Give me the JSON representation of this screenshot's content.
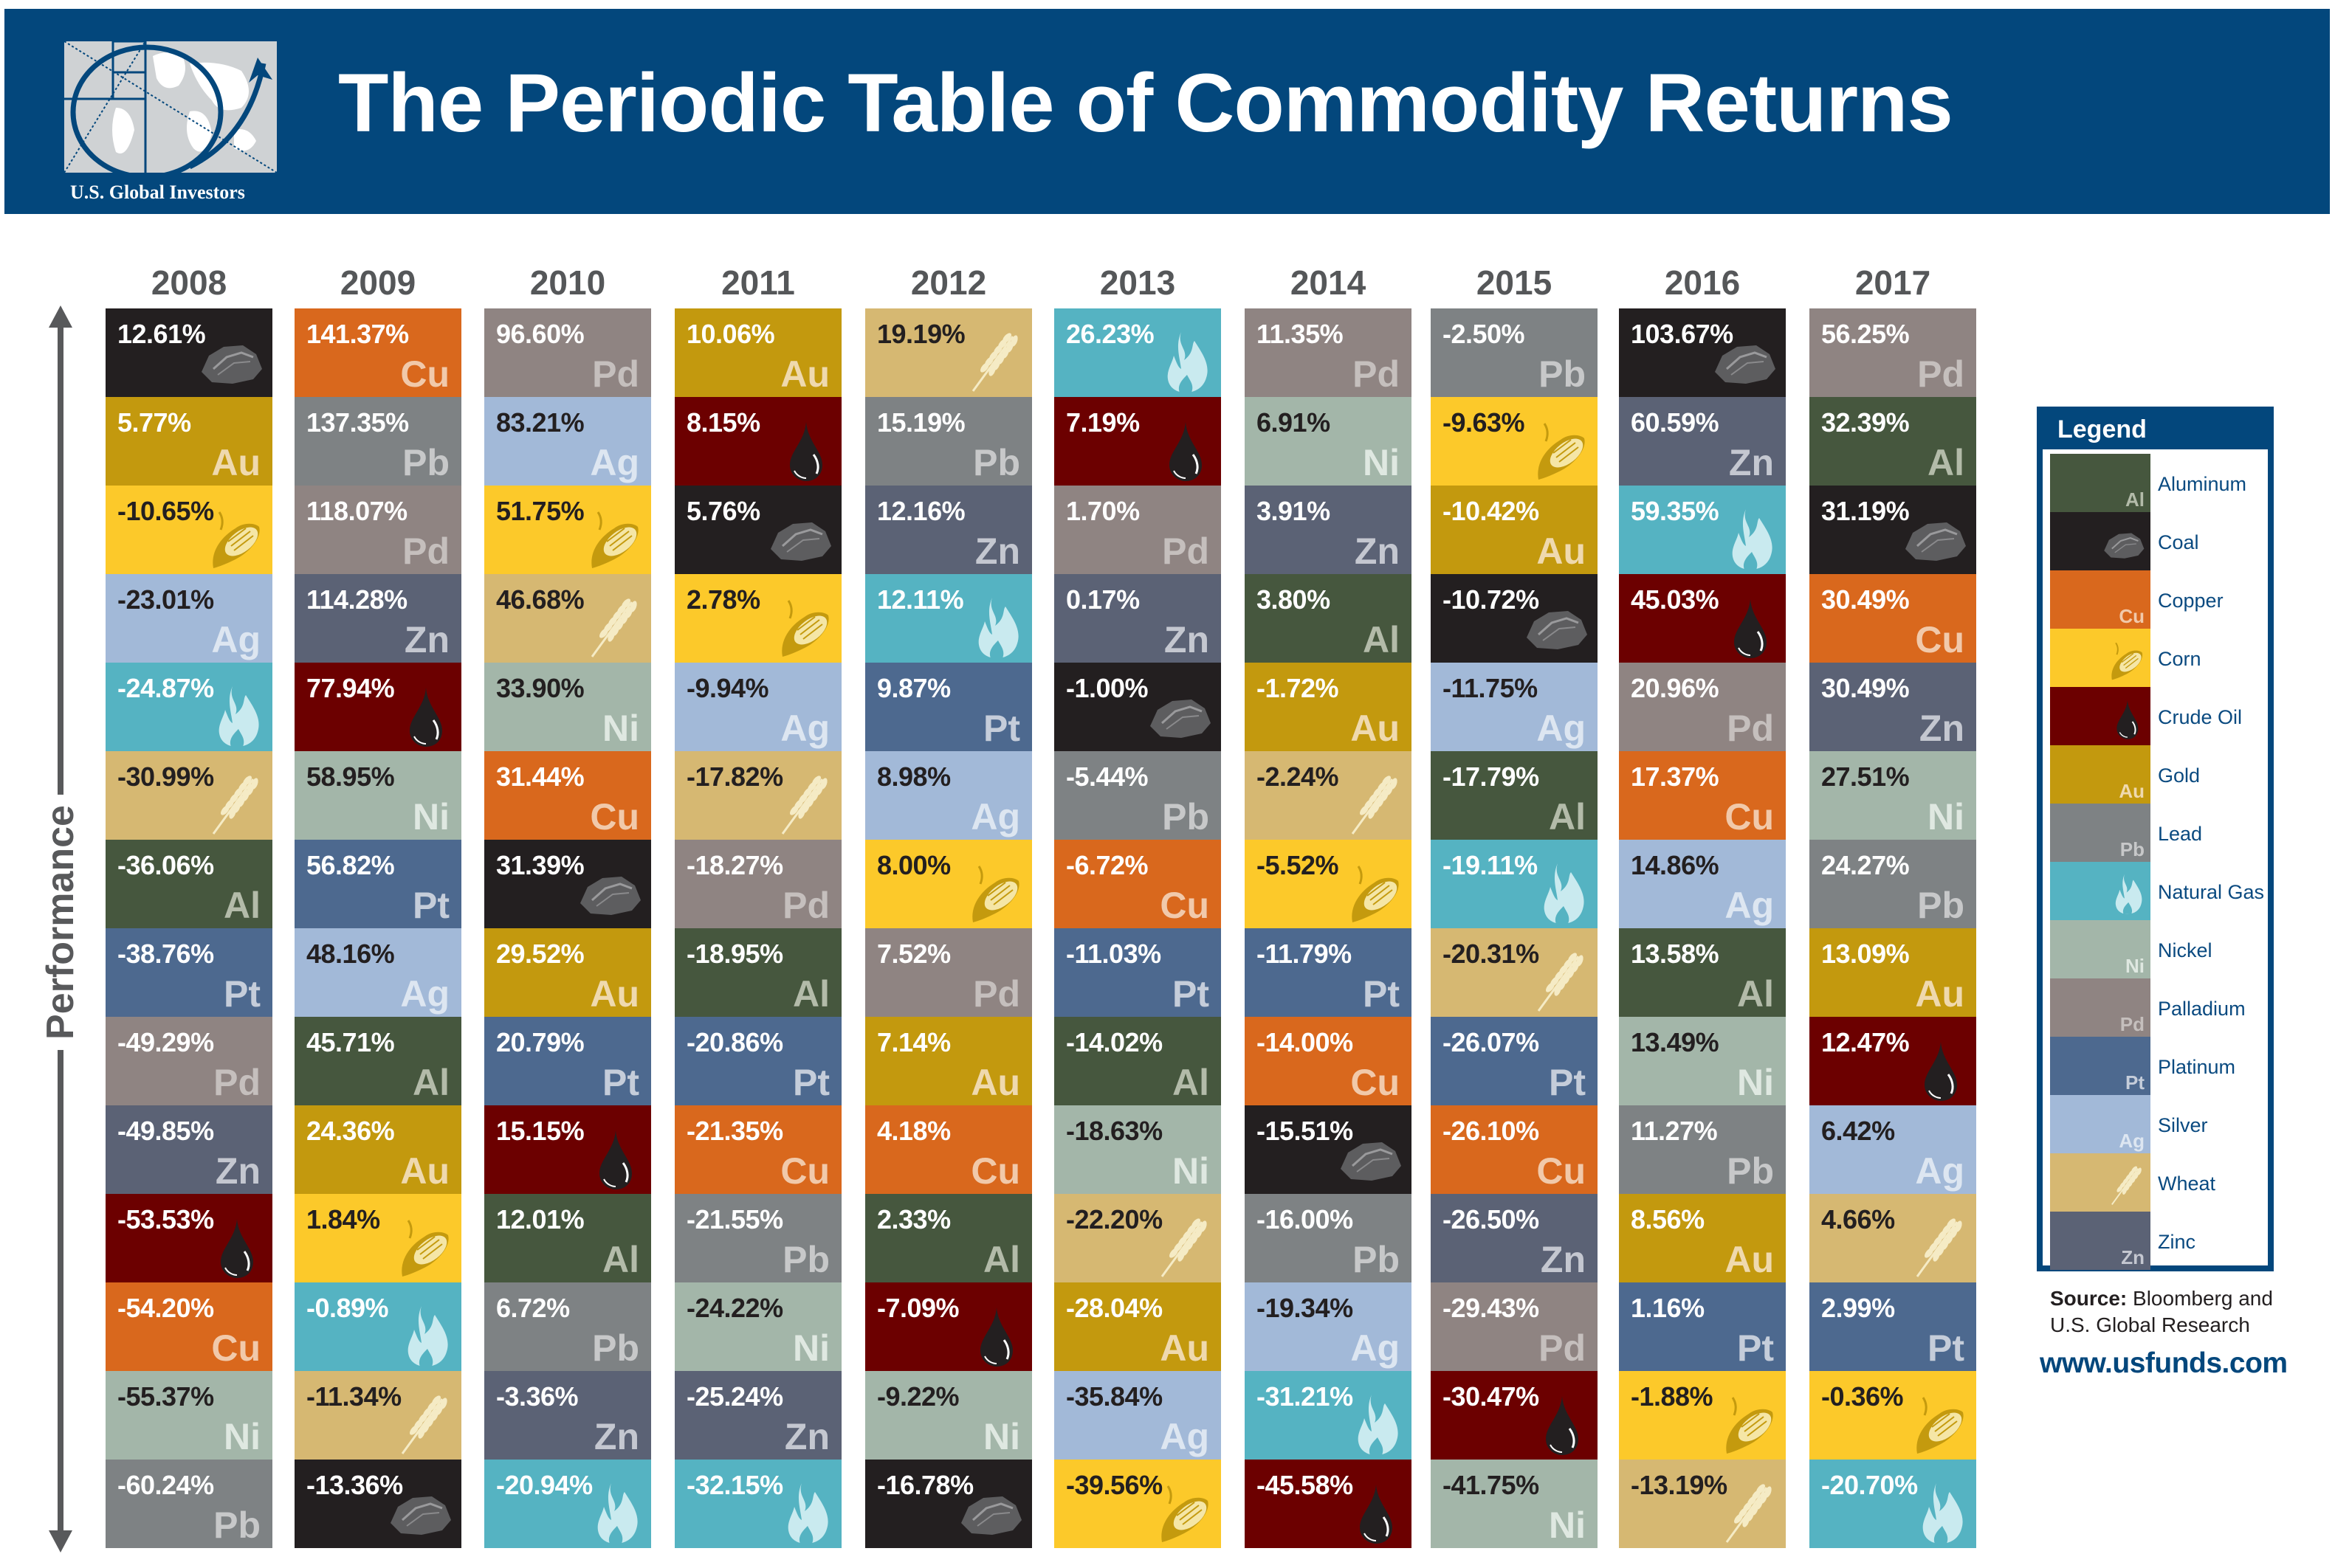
{
  "header": {
    "title": "The Periodic Table of Commodity Returns",
    "logo_caption": "U.S. Global Investors"
  },
  "axis_label": "Performance",
  "legend": {
    "title": "Legend",
    "items": [
      {
        "key": "al",
        "name": "Aluminum",
        "symbol": "Al",
        "icon": ""
      },
      {
        "key": "coal",
        "name": "Coal",
        "symbol": "",
        "icon": "coal-icon"
      },
      {
        "key": "cu",
        "name": "Copper",
        "symbol": "Cu",
        "icon": ""
      },
      {
        "key": "corn",
        "name": "Corn",
        "symbol": "",
        "icon": "corn-icon"
      },
      {
        "key": "oil",
        "name": "Crude Oil",
        "symbol": "",
        "icon": "oil-drop-icon"
      },
      {
        "key": "au",
        "name": "Gold",
        "symbol": "Au",
        "icon": ""
      },
      {
        "key": "pb",
        "name": "Lead",
        "symbol": "Pb",
        "icon": ""
      },
      {
        "key": "gas",
        "name": "Natural Gas",
        "symbol": "",
        "icon": "flame-icon"
      },
      {
        "key": "ni",
        "name": "Nickel",
        "symbol": "Ni",
        "icon": ""
      },
      {
        "key": "pd",
        "name": "Palladium",
        "symbol": "Pd",
        "icon": ""
      },
      {
        "key": "pt",
        "name": "Platinum",
        "symbol": "Pt",
        "icon": ""
      },
      {
        "key": "ag",
        "name": "Silver",
        "symbol": "Ag",
        "icon": ""
      },
      {
        "key": "wheat",
        "name": "Wheat",
        "symbol": "",
        "icon": "wheat-icon"
      },
      {
        "key": "zn",
        "name": "Zinc",
        "symbol": "Zn",
        "icon": ""
      }
    ]
  },
  "commodity_styles": {
    "al": {
      "bg": "#46573e",
      "text": "#ffffff",
      "sym": "#b3bba9"
    },
    "coal": {
      "bg": "#231f20",
      "text": "#ffffff",
      "sym": "#8a8a8a"
    },
    "cu": {
      "bg": "#d9681d",
      "text": "#ffffff",
      "sym": "#f1c9aa"
    },
    "corn": {
      "bg": "#fcc92a",
      "text": "#231f20",
      "sym": "#c49a0e"
    },
    "oil": {
      "bg": "#6c0000",
      "text": "#ffffff",
      "sym": "#231f20"
    },
    "au": {
      "bg": "#c3990e",
      "text": "#ffffff",
      "sym": "#efd9ae"
    },
    "pb": {
      "bg": "#7e8284",
      "text": "#ffffff",
      "sym": "#c7c8c9"
    },
    "gas": {
      "bg": "#55b3c2",
      "text": "#ffffff",
      "sym": "#c9eaef"
    },
    "ni": {
      "bg": "#a3b6a9",
      "text": "#231f20",
      "sym": "#dfe8e1"
    },
    "pd": {
      "bg": "#8f8482",
      "text": "#ffffff",
      "sym": "#c5bfbd"
    },
    "pt": {
      "bg": "#4d698f",
      "text": "#ffffff",
      "sym": "#c5cdda"
    },
    "ag": {
      "bg": "#a2b9d8",
      "text": "#231f20",
      "sym": "#dde6f1"
    },
    "wheat": {
      "bg": "#d6b872",
      "text": "#231f20",
      "sym": "#f5ebc5"
    },
    "zn": {
      "bg": "#5b6275",
      "text": "#ffffff",
      "sym": "#c4c7d0"
    }
  },
  "source": {
    "label": "Source:",
    "text_line1": "Bloomberg and",
    "text_line2": "U.S. Global Research"
  },
  "url": "www.usfunds.com",
  "chart_data": {
    "type": "table",
    "title": "The Periodic Table of Commodity Returns",
    "ylabel": "Performance",
    "years": [
      "2008",
      "2009",
      "2010",
      "2011",
      "2012",
      "2013",
      "2014",
      "2015",
      "2016",
      "2017"
    ],
    "columns": [
      {
        "year": "2008",
        "cells": [
          {
            "c": "coal",
            "v": "12.61%"
          },
          {
            "c": "au",
            "v": "5.77%"
          },
          {
            "c": "corn",
            "v": "-10.65%"
          },
          {
            "c": "ag",
            "v": "-23.01%"
          },
          {
            "c": "gas",
            "v": "-24.87%"
          },
          {
            "c": "wheat",
            "v": "-30.99%"
          },
          {
            "c": "al",
            "v": "-36.06%"
          },
          {
            "c": "pt",
            "v": "-38.76%"
          },
          {
            "c": "pd",
            "v": "-49.29%"
          },
          {
            "c": "zn",
            "v": "-49.85%"
          },
          {
            "c": "oil",
            "v": "-53.53%"
          },
          {
            "c": "cu",
            "v": "-54.20%"
          },
          {
            "c": "ni",
            "v": "-55.37%"
          },
          {
            "c": "pb",
            "v": "-60.24%"
          }
        ]
      },
      {
        "year": "2009",
        "cells": [
          {
            "c": "cu",
            "v": "141.37%"
          },
          {
            "c": "pb",
            "v": "137.35%"
          },
          {
            "c": "pd",
            "v": "118.07%"
          },
          {
            "c": "zn",
            "v": "114.28%"
          },
          {
            "c": "oil",
            "v": "77.94%"
          },
          {
            "c": "ni",
            "v": "58.95%"
          },
          {
            "c": "pt",
            "v": "56.82%"
          },
          {
            "c": "ag",
            "v": "48.16%"
          },
          {
            "c": "al",
            "v": "45.71%"
          },
          {
            "c": "au",
            "v": "24.36%"
          },
          {
            "c": "corn",
            "v": "1.84%"
          },
          {
            "c": "gas",
            "v": "-0.89%"
          },
          {
            "c": "wheat",
            "v": "-11.34%"
          },
          {
            "c": "coal",
            "v": "-13.36%"
          }
        ]
      },
      {
        "year": "2010",
        "cells": [
          {
            "c": "pd",
            "v": "96.60%"
          },
          {
            "c": "ag",
            "v": "83.21%"
          },
          {
            "c": "corn",
            "v": "51.75%"
          },
          {
            "c": "wheat",
            "v": "46.68%"
          },
          {
            "c": "ni",
            "v": "33.90%"
          },
          {
            "c": "cu",
            "v": "31.44%"
          },
          {
            "c": "coal",
            "v": "31.39%"
          },
          {
            "c": "au",
            "v": "29.52%"
          },
          {
            "c": "pt",
            "v": "20.79%"
          },
          {
            "c": "oil",
            "v": "15.15%"
          },
          {
            "c": "al",
            "v": "12.01%"
          },
          {
            "c": "pb",
            "v": "6.72%"
          },
          {
            "c": "zn",
            "v": "-3.36%"
          },
          {
            "c": "gas",
            "v": "-20.94%"
          }
        ]
      },
      {
        "year": "2011",
        "cells": [
          {
            "c": "au",
            "v": "10.06%"
          },
          {
            "c": "oil",
            "v": "8.15%"
          },
          {
            "c": "coal",
            "v": "5.76%"
          },
          {
            "c": "corn",
            "v": "2.78%"
          },
          {
            "c": "ag",
            "v": "-9.94%"
          },
          {
            "c": "wheat",
            "v": "-17.82%"
          },
          {
            "c": "pd",
            "v": "-18.27%"
          },
          {
            "c": "al",
            "v": "-18.95%"
          },
          {
            "c": "pt",
            "v": "-20.86%"
          },
          {
            "c": "cu",
            "v": "-21.35%"
          },
          {
            "c": "pb",
            "v": "-21.55%"
          },
          {
            "c": "ni",
            "v": "-24.22%"
          },
          {
            "c": "zn",
            "v": "-25.24%"
          },
          {
            "c": "gas",
            "v": "-32.15%"
          }
        ]
      },
      {
        "year": "2012",
        "cells": [
          {
            "c": "wheat",
            "v": "19.19%"
          },
          {
            "c": "pb",
            "v": "15.19%"
          },
          {
            "c": "zn",
            "v": "12.16%"
          },
          {
            "c": "gas",
            "v": "12.11%"
          },
          {
            "c": "pt",
            "v": "9.87%"
          },
          {
            "c": "ag",
            "v": "8.98%"
          },
          {
            "c": "corn",
            "v": "8.00%"
          },
          {
            "c": "pd",
            "v": "7.52%"
          },
          {
            "c": "au",
            "v": "7.14%"
          },
          {
            "c": "cu",
            "v": "4.18%"
          },
          {
            "c": "al",
            "v": "2.33%"
          },
          {
            "c": "oil",
            "v": "-7.09%"
          },
          {
            "c": "ni",
            "v": "-9.22%"
          },
          {
            "c": "coal",
            "v": "-16.78%"
          }
        ]
      },
      {
        "year": "2013",
        "cells": [
          {
            "c": "gas",
            "v": "26.23%"
          },
          {
            "c": "oil",
            "v": "7.19%"
          },
          {
            "c": "pd",
            "v": "1.70%"
          },
          {
            "c": "zn",
            "v": "0.17%"
          },
          {
            "c": "coal",
            "v": "-1.00%"
          },
          {
            "c": "pb",
            "v": "-5.44%"
          },
          {
            "c": "cu",
            "v": "-6.72%"
          },
          {
            "c": "pt",
            "v": "-11.03%"
          },
          {
            "c": "al",
            "v": "-14.02%"
          },
          {
            "c": "ni",
            "v": "-18.63%"
          },
          {
            "c": "wheat",
            "v": "-22.20%"
          },
          {
            "c": "au",
            "v": "-28.04%"
          },
          {
            "c": "ag",
            "v": "-35.84%"
          },
          {
            "c": "corn",
            "v": "-39.56%"
          }
        ]
      },
      {
        "year": "2014",
        "cells": [
          {
            "c": "pd",
            "v": "11.35%"
          },
          {
            "c": "ni",
            "v": "6.91%"
          },
          {
            "c": "zn",
            "v": "3.91%"
          },
          {
            "c": "al",
            "v": "3.80%"
          },
          {
            "c": "au",
            "v": "-1.72%"
          },
          {
            "c": "wheat",
            "v": "-2.24%"
          },
          {
            "c": "corn",
            "v": "-5.52%"
          },
          {
            "c": "pt",
            "v": "-11.79%"
          },
          {
            "c": "cu",
            "v": "-14.00%"
          },
          {
            "c": "coal",
            "v": "-15.51%"
          },
          {
            "c": "pb",
            "v": "-16.00%"
          },
          {
            "c": "ag",
            "v": "-19.34%"
          },
          {
            "c": "gas",
            "v": "-31.21%"
          },
          {
            "c": "oil",
            "v": "-45.58%"
          }
        ]
      },
      {
        "year": "2015",
        "cells": [
          {
            "c": "pb",
            "v": "-2.50%"
          },
          {
            "c": "corn",
            "v": "-9.63%"
          },
          {
            "c": "au",
            "v": "-10.42%"
          },
          {
            "c": "coal",
            "v": "-10.72%"
          },
          {
            "c": "ag",
            "v": "-11.75%"
          },
          {
            "c": "al",
            "v": "-17.79%"
          },
          {
            "c": "gas",
            "v": "-19.11%"
          },
          {
            "c": "wheat",
            "v": "-20.31%"
          },
          {
            "c": "pt",
            "v": "-26.07%"
          },
          {
            "c": "cu",
            "v": "-26.10%"
          },
          {
            "c": "zn",
            "v": "-26.50%"
          },
          {
            "c": "pd",
            "v": "-29.43%"
          },
          {
            "c": "oil",
            "v": "-30.47%"
          },
          {
            "c": "ni",
            "v": "-41.75%"
          }
        ]
      },
      {
        "year": "2016",
        "cells": [
          {
            "c": "coal",
            "v": "103.67%"
          },
          {
            "c": "zn",
            "v": "60.59%"
          },
          {
            "c": "gas",
            "v": "59.35%"
          },
          {
            "c": "oil",
            "v": "45.03%"
          },
          {
            "c": "pd",
            "v": "20.96%"
          },
          {
            "c": "cu",
            "v": "17.37%"
          },
          {
            "c": "ag",
            "v": "14.86%"
          },
          {
            "c": "al",
            "v": "13.58%"
          },
          {
            "c": "ni",
            "v": "13.49%"
          },
          {
            "c": "pb",
            "v": "11.27%"
          },
          {
            "c": "au",
            "v": "8.56%"
          },
          {
            "c": "pt",
            "v": "1.16%"
          },
          {
            "c": "corn",
            "v": "-1.88%"
          },
          {
            "c": "wheat",
            "v": "-13.19%"
          }
        ]
      },
      {
        "year": "2017",
        "cells": [
          {
            "c": "pd",
            "v": "56.25%"
          },
          {
            "c": "al",
            "v": "32.39%"
          },
          {
            "c": "coal",
            "v": "31.19%"
          },
          {
            "c": "cu",
            "v": "30.49%"
          },
          {
            "c": "zn",
            "v": "30.49%"
          },
          {
            "c": "ni",
            "v": "27.51%"
          },
          {
            "c": "pb",
            "v": "24.27%"
          },
          {
            "c": "au",
            "v": "13.09%"
          },
          {
            "c": "oil",
            "v": "12.47%"
          },
          {
            "c": "ag",
            "v": "6.42%"
          },
          {
            "c": "wheat",
            "v": "4.66%"
          },
          {
            "c": "pt",
            "v": "2.99%"
          },
          {
            "c": "corn",
            "v": "-0.36%"
          },
          {
            "c": "gas",
            "v": "-20.70%"
          }
        ]
      }
    ]
  }
}
